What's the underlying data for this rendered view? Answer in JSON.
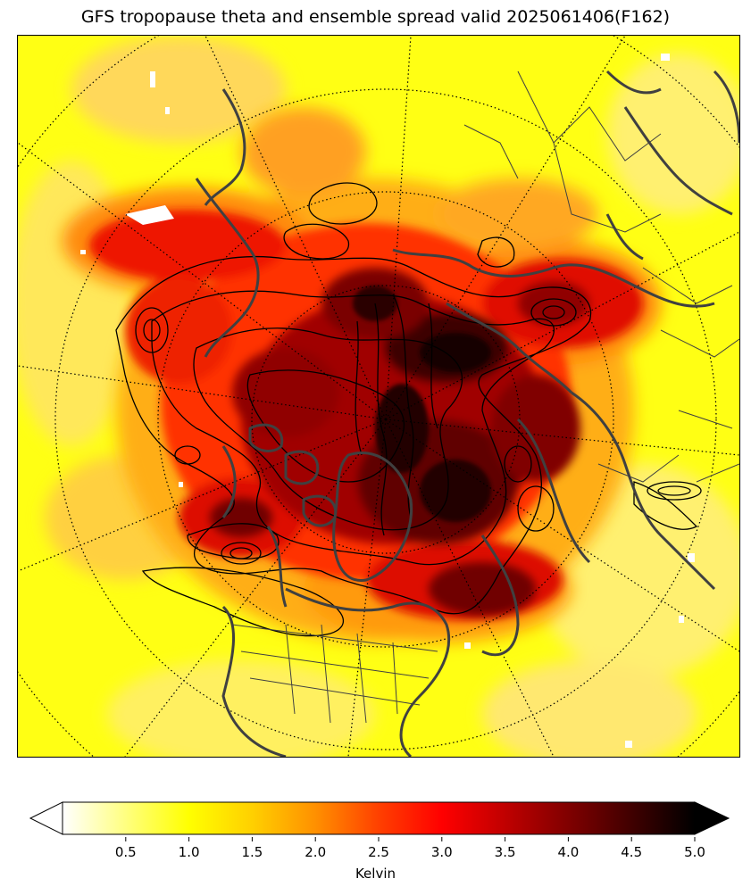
{
  "figure": {
    "title": "GFS tropopause theta and ensemble spread valid 2025061406(F162)"
  },
  "colorbar": {
    "label": "Kelvin",
    "min": 0.0,
    "max": 5.0,
    "extend": "both",
    "ticks": [
      "0.5",
      "1.0",
      "1.5",
      "2.0",
      "2.5",
      "3.0",
      "3.5",
      "4.0",
      "4.5",
      "5.0"
    ],
    "colormap": "hot_r",
    "stops": [
      "#ffffff",
      "#ffff80",
      "#ffff00",
      "#ffd000",
      "#ff9000",
      "#ff4000",
      "#ff0000",
      "#c00000",
      "#800000",
      "#400000",
      "#000000"
    ]
  },
  "map": {
    "projection": "north-polar-stereographic",
    "coastline_color": "#404040",
    "contour_color": "#000000",
    "graticule_style": "dotted"
  }
}
